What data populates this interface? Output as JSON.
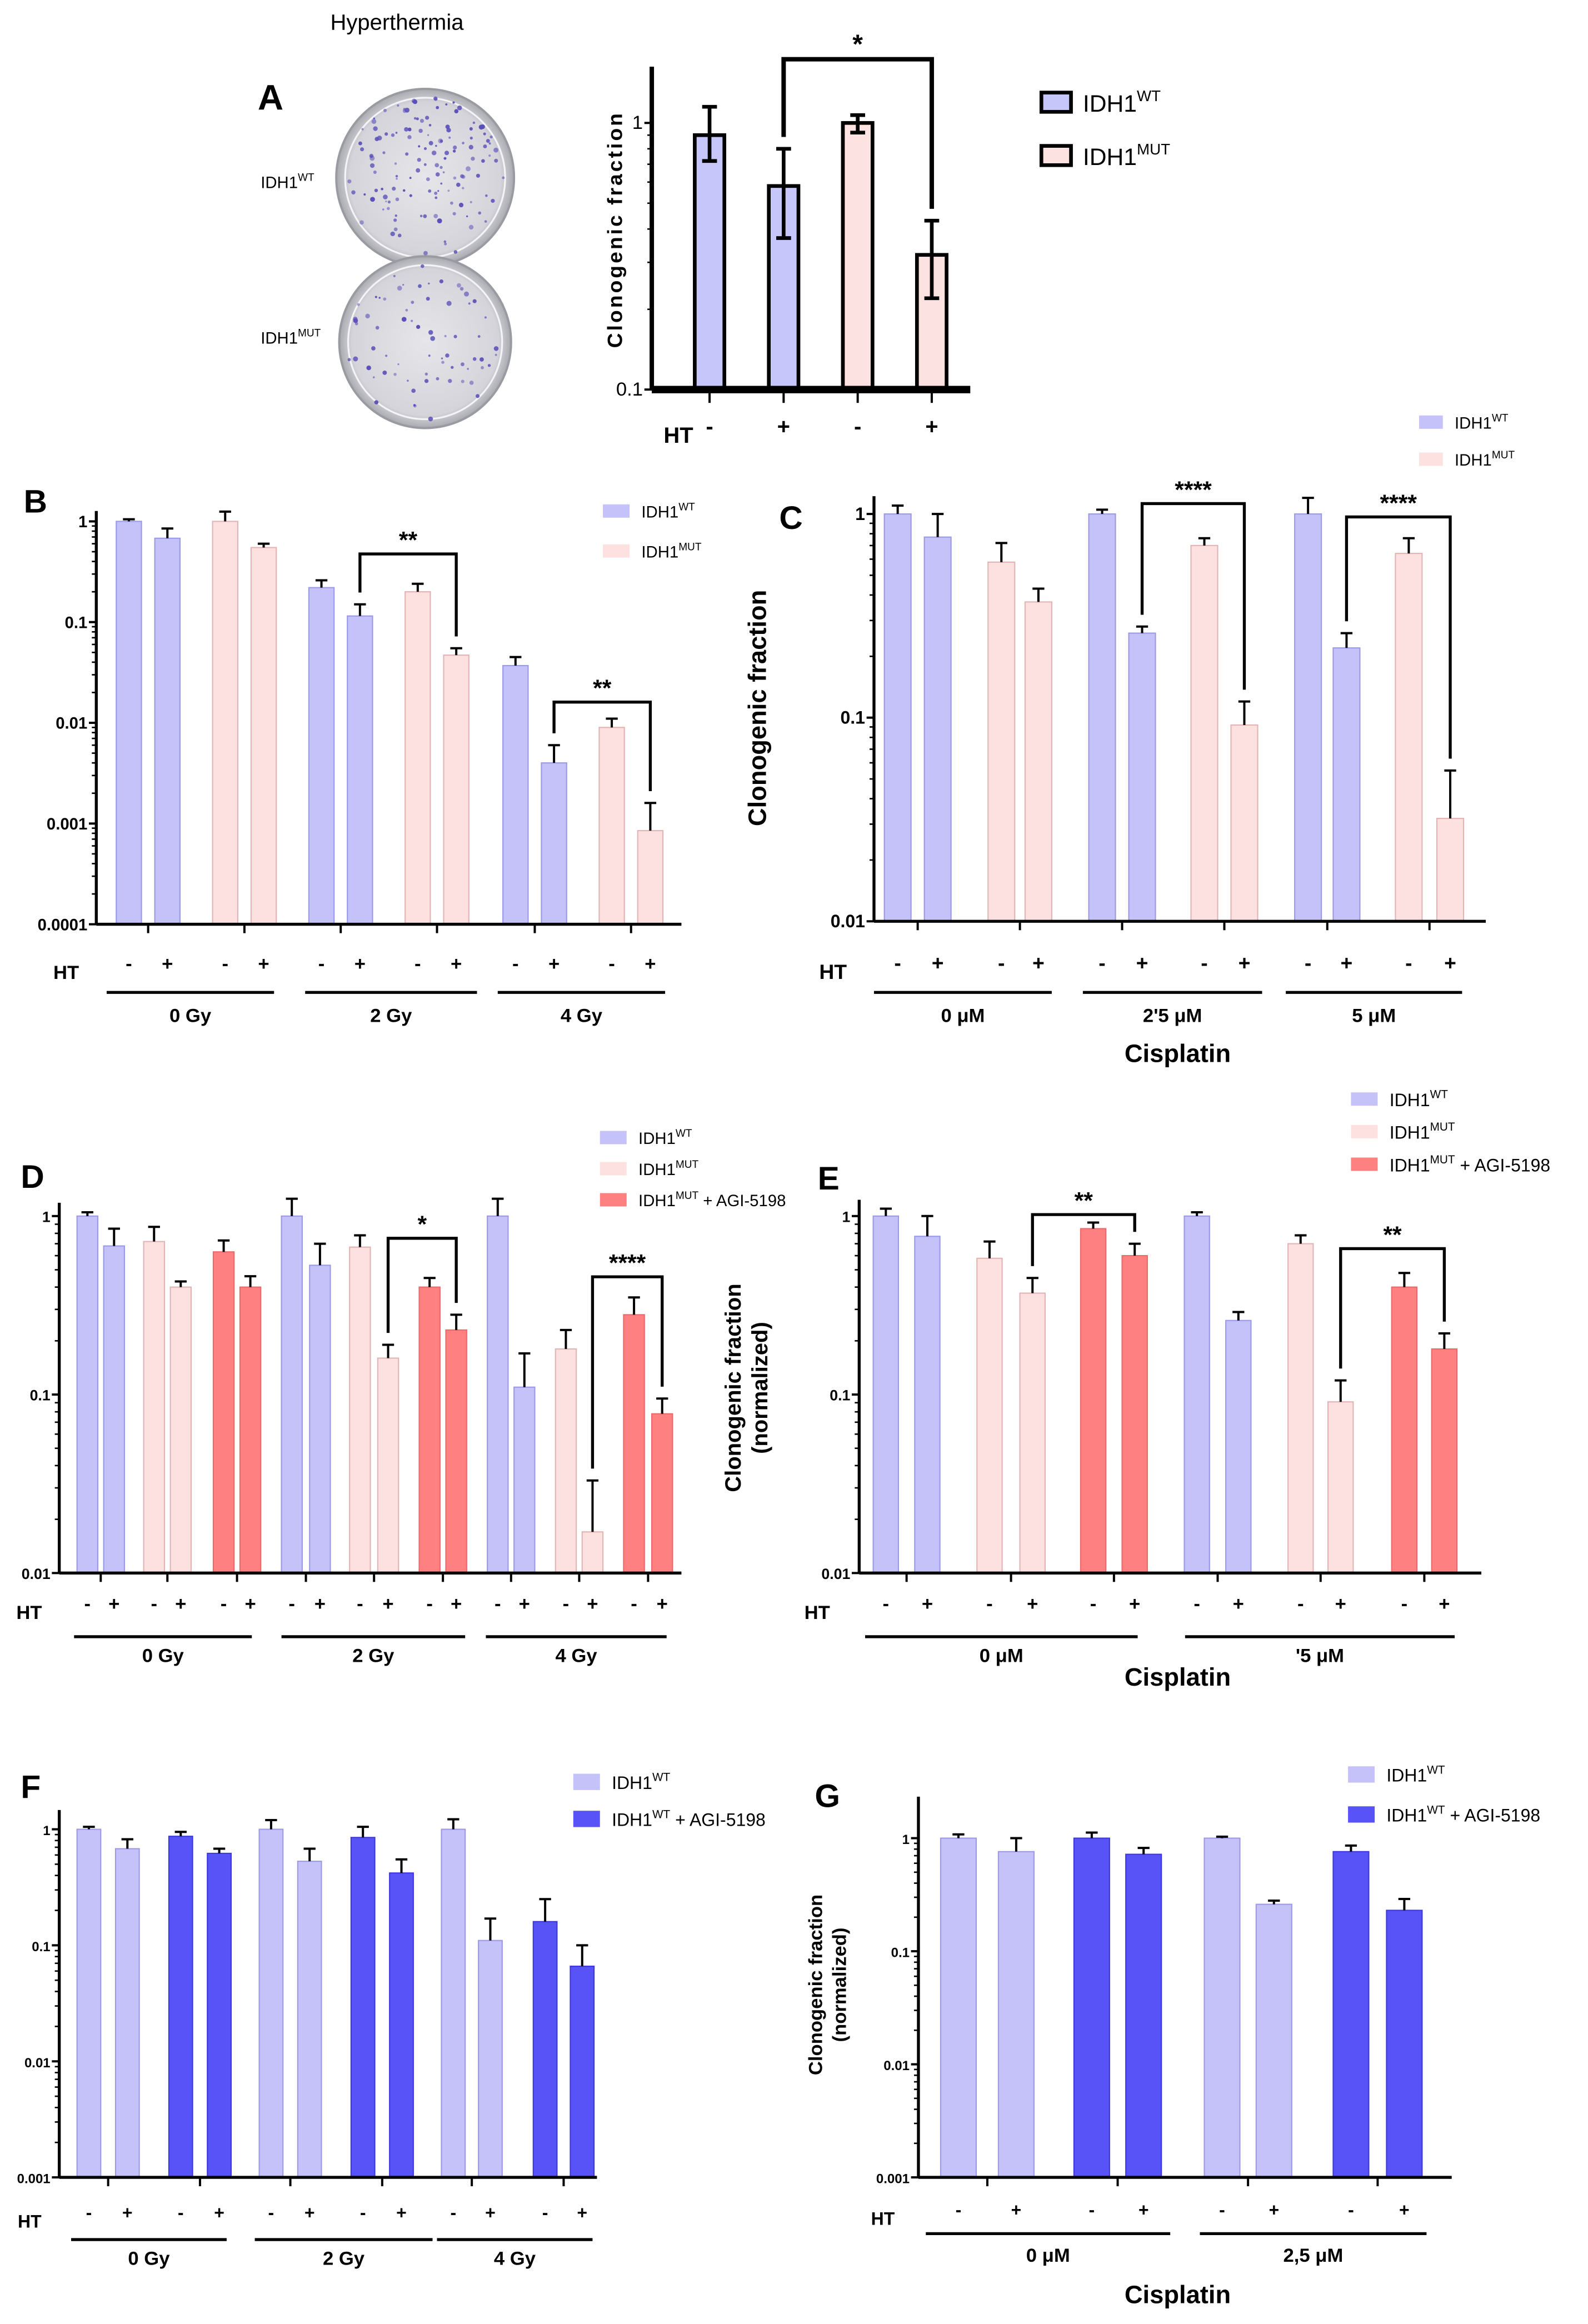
{
  "figure_title": "Hyperthermia",
  "photo": {
    "labels": [
      {
        "base": "IDH1",
        "sup": "WT"
      },
      {
        "base": "IDH1",
        "sup": "MUT"
      }
    ],
    "colony_color": "#5a4fb8"
  },
  "colors": {
    "wt": "#c4c2f8",
    "mut": "#fde0e0",
    "mut_agi": "#ff8080",
    "wt_agi": "#5753f7"
  },
  "chart_data": [
    {
      "panel": "A",
      "type": "bar",
      "ylim": [
        0.1,
        1.6
      ],
      "yscale": "log",
      "yticks": [
        "1",
        "0.1"
      ],
      "ytick_values": [
        1,
        0.1
      ],
      "ylabel": [
        "Clonogenic fraction"
      ],
      "xlabel": "",
      "ht_label": "HT",
      "groups": [
        ""
      ],
      "series": [
        {
          "name": {
            "base": "IDH1",
            "sup": "WT",
            "suffix": ""
          },
          "color": "#c7c6fb",
          "values": [
            0.9,
            0.58
          ],
          "err_upper": [
            1.15,
            0.8
          ],
          "err_lower": [
            0.72,
            0.37
          ]
        },
        {
          "name": {
            "base": "IDH1",
            "sup": "MUT",
            "suffix": ""
          },
          "color": "#fde2e2",
          "values": [
            1.0,
            0.32
          ],
          "err_upper": [
            1.07,
            0.43
          ],
          "err_lower": [
            0.92,
            0.22
          ]
        }
      ],
      "ht": [
        "-",
        "+"
      ],
      "significance": [
        {
          "from": 1,
          "to": 3,
          "label": "*"
        }
      ]
    },
    {
      "panel": "B",
      "type": "bar",
      "ylim": [
        0.0001,
        1.2
      ],
      "yscale": "log",
      "yticks": [
        "1",
        "0.1",
        "0.01",
        "0.001",
        "0.0001"
      ],
      "ytick_values": [
        1,
        0.1,
        0.01,
        0.001,
        0.0001
      ],
      "ylabel": [],
      "xlabel": "",
      "ht_label": "HT",
      "groups": [
        "0 Gy",
        "2 Gy",
        "4 Gy"
      ],
      "series": [
        {
          "name": {
            "base": "IDH1",
            "sup": "WT",
            "suffix": ""
          },
          "color": "#c4c2f8",
          "values": [
            1.0,
            0.68,
            0.22,
            0.115,
            0.037,
            0.004
          ],
          "err_upper": [
            1.05,
            0.85,
            0.26,
            0.15,
            0.045,
            0.006
          ]
        },
        {
          "name": {
            "base": "IDH1",
            "sup": "MUT",
            "suffix": ""
          },
          "color": "#fde0e0",
          "values": [
            1.0,
            0.55,
            0.2,
            0.047,
            0.009,
            0.00085
          ],
          "err_upper": [
            1.25,
            0.6,
            0.24,
            0.055,
            0.011,
            0.0016
          ]
        }
      ],
      "ht": [
        "-",
        "+"
      ],
      "significance": [
        {
          "from": 5,
          "to": 7,
          "label": "**"
        },
        {
          "from": 9,
          "to": 11,
          "label": "**"
        }
      ]
    },
    {
      "panel": "C",
      "type": "bar",
      "ylim": [
        0.01,
        1.2
      ],
      "yscale": "log",
      "yticks": [
        "1",
        "0.1",
        "0.01"
      ],
      "ytick_values": [
        1,
        0.1,
        0.01
      ],
      "ylabel": [
        "Clonogenic fraction"
      ],
      "xlabel": "Cisplatin",
      "ht_label": "HT",
      "groups": [
        "0 μM",
        "2'5 μM",
        "5 μM"
      ],
      "series": [
        {
          "name": {
            "base": "IDH1",
            "sup": "WT",
            "suffix": ""
          },
          "color": "#c4c2f8",
          "values": [
            1.0,
            0.77,
            1.0,
            0.26,
            1.0,
            0.22
          ],
          "err_upper": [
            1.1,
            1.0,
            1.05,
            0.28,
            1.2,
            0.26
          ]
        },
        {
          "name": {
            "base": "IDH1",
            "sup": "MUT",
            "suffix": ""
          },
          "color": "#fde0e0",
          "values": [
            0.58,
            0.37,
            0.7,
            0.092,
            0.64,
            0.032
          ],
          "err_upper": [
            0.72,
            0.43,
            0.76,
            0.12,
            0.76,
            0.055
          ]
        }
      ],
      "ht": [
        "-",
        "+"
      ],
      "significance": [
        {
          "from": 5,
          "to": 7,
          "label": "****"
        },
        {
          "from": 9,
          "to": 11,
          "label": "****"
        }
      ]
    },
    {
      "panel": "D",
      "type": "bar",
      "ylim": [
        0.01,
        1.2
      ],
      "yscale": "log",
      "yticks": [
        "1",
        "0.1",
        "0.01"
      ],
      "ytick_values": [
        1,
        0.1,
        0.01
      ],
      "ylabel": [],
      "xlabel": "",
      "ht_label": "HT",
      "groups": [
        "0 Gy",
        "2 Gy",
        "4 Gy"
      ],
      "series": [
        {
          "name": {
            "base": "IDH1",
            "sup": "WT",
            "suffix": ""
          },
          "color": "#c4c2f8",
          "values": [
            1.0,
            0.68,
            1.0,
            0.53,
            1.0,
            0.11
          ],
          "err_upper": [
            1.05,
            0.85,
            1.25,
            0.7,
            1.25,
            0.17
          ]
        },
        {
          "name": {
            "base": "IDH1",
            "sup": "MUT",
            "suffix": ""
          },
          "color": "#fde0e0",
          "values": [
            0.72,
            0.4,
            0.67,
            0.16,
            0.18,
            0.017
          ],
          "err_upper": [
            0.87,
            0.43,
            0.78,
            0.19,
            0.23,
            0.033
          ]
        },
        {
          "name": {
            "base": "IDH1",
            "sup": "MUT",
            "suffix": " + AGI-5198"
          },
          "color": "#ff8080",
          "values": [
            0.63,
            0.4,
            0.4,
            0.23,
            0.28,
            0.078
          ],
          "err_upper": [
            0.73,
            0.46,
            0.45,
            0.28,
            0.35,
            0.095
          ]
        }
      ],
      "ht": [
        "-",
        "+"
      ],
      "significance": [
        {
          "from": 9,
          "to": 11,
          "label": "*"
        },
        {
          "from": 15,
          "to": 17,
          "label": "****"
        }
      ]
    },
    {
      "panel": "E",
      "type": "bar",
      "ylim": [
        0.01,
        1.2
      ],
      "yscale": "log",
      "yticks": [
        "1",
        "0.1",
        "0.01"
      ],
      "ytick_values": [
        1,
        0.1,
        0.01
      ],
      "ylabel": [
        "Clonogenic fraction",
        "(normalized)"
      ],
      "xlabel": "Cisplatin",
      "ht_label": "HT",
      "groups": [
        "0 μM",
        "'5 μM"
      ],
      "series": [
        {
          "name": {
            "base": "IDH1",
            "sup": "WT",
            "suffix": ""
          },
          "color": "#c4c2f8",
          "values": [
            1.0,
            0.77,
            1.0,
            0.26
          ],
          "err_upper": [
            1.1,
            1.0,
            1.05,
            0.29
          ]
        },
        {
          "name": {
            "base": "IDH1",
            "sup": "MUT",
            "suffix": ""
          },
          "color": "#fde0e0",
          "values": [
            0.58,
            0.37,
            0.7,
            0.091
          ],
          "err_upper": [
            0.72,
            0.45,
            0.78,
            0.12
          ]
        },
        {
          "name": {
            "base": "IDH1",
            "sup": "MUT",
            "suffix": " + AGI-5198"
          },
          "color": "#ff8080",
          "values": [
            0.85,
            0.6,
            0.4,
            0.18
          ],
          "err_upper": [
            0.92,
            0.7,
            0.48,
            0.22
          ]
        }
      ],
      "ht": [
        "-",
        "+"
      ],
      "significance": [
        {
          "from": 3,
          "to": 5,
          "label": "**"
        },
        {
          "from": 9,
          "to": 11,
          "label": "**"
        }
      ]
    },
    {
      "panel": "F",
      "type": "bar",
      "ylim": [
        0.001,
        1.5
      ],
      "yscale": "log",
      "yticks": [
        "1",
        "0.1",
        "0.01",
        "0.001"
      ],
      "ytick_values": [
        1,
        0.1,
        0.01,
        0.001
      ],
      "ylabel": [],
      "xlabel": "",
      "ht_label": "HT",
      "groups": [
        "0 Gy",
        "2 Gy",
        "4 Gy"
      ],
      "series": [
        {
          "name": {
            "base": "IDH1",
            "sup": "WT",
            "suffix": ""
          },
          "color": "#c4c2f8",
          "values": [
            1.0,
            0.68,
            1.0,
            0.53,
            1.0,
            0.11
          ],
          "err_upper": [
            1.05,
            0.82,
            1.2,
            0.68,
            1.22,
            0.17
          ]
        },
        {
          "name": {
            "base": "IDH1",
            "sup": "WT",
            "suffix": " + AGI-5198"
          },
          "color": "#5753f7",
          "values": [
            0.87,
            0.62,
            0.85,
            0.42,
            0.16,
            0.066
          ],
          "err_upper": [
            0.95,
            0.68,
            1.05,
            0.55,
            0.25,
            0.1
          ]
        }
      ],
      "ht": [
        "-",
        "+"
      ],
      "significance": []
    },
    {
      "panel": "G",
      "type": "bar",
      "ylim": [
        0.001,
        1.5
      ],
      "yscale": "log",
      "yticks": [
        "1",
        "0.1",
        "0.01",
        "0.001"
      ],
      "ytick_values": [
        1,
        0.1,
        0.01,
        0.001
      ],
      "ylabel": [
        "Clonogenic fraction",
        "(normalized)"
      ],
      "xlabel": "Cisplatin",
      "ht_label": "HT",
      "groups": [
        "0 μM",
        "2,5 μM"
      ],
      "series": [
        {
          "name": {
            "base": "IDH1",
            "sup": "WT",
            "suffix": ""
          },
          "color": "#c4c2f8",
          "values": [
            1.0,
            0.76,
            1.0,
            0.26
          ],
          "err_upper": [
            1.08,
            1.0,
            1.03,
            0.28
          ]
        },
        {
          "name": {
            "base": "IDH1",
            "sup": "WT",
            "suffix": " + AGI-5198"
          },
          "color": "#5753f7",
          "values": [
            1.0,
            0.72,
            0.76,
            0.23
          ],
          "err_upper": [
            1.12,
            0.82,
            0.86,
            0.29
          ]
        }
      ],
      "ht": [
        "-",
        "+"
      ],
      "significance": []
    }
  ]
}
